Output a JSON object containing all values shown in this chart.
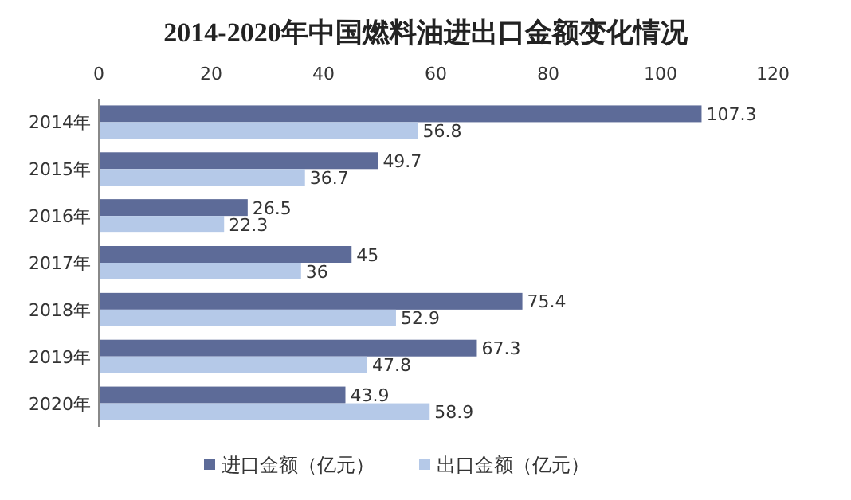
{
  "chart_data": {
    "type": "bar",
    "orientation": "horizontal",
    "title": "2014-2020年中国燃料油进出口金额变化情况",
    "categories": [
      "2014年",
      "2015年",
      "2016年",
      "2017年",
      "2018年",
      "2019年",
      "2020年"
    ],
    "series": [
      {
        "name": "进口金额（亿元）",
        "color": "#5d6b98",
        "values": [
          107.3,
          49.7,
          26.5,
          45,
          75.4,
          67.3,
          43.9
        ]
      },
      {
        "name": "出口金额（亿元）",
        "color": "#b5c9e8",
        "values": [
          56.8,
          36.7,
          22.3,
          36,
          52.9,
          47.8,
          58.9
        ]
      }
    ],
    "xlim": [
      0,
      120
    ],
    "xticks": [
      0,
      20,
      40,
      60,
      80,
      100,
      120
    ],
    "data_labels": true,
    "legend": "bottom"
  }
}
